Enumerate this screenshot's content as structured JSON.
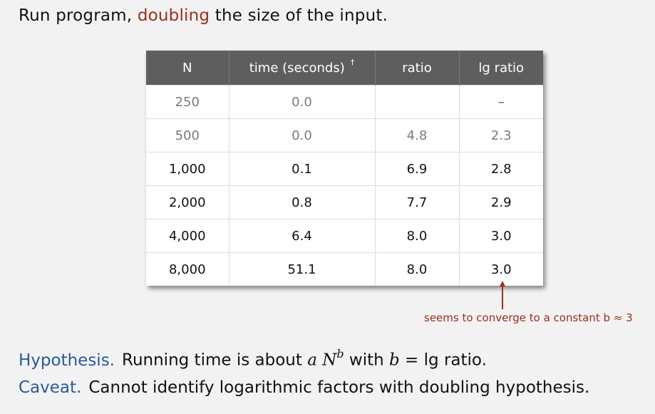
{
  "heading": {
    "before": "Run program, ",
    "emphasis": "doubling",
    "after": " the size of the input."
  },
  "table": {
    "headers": [
      "N",
      "time (seconds)",
      "ratio",
      "lg ratio"
    ],
    "dagger": "†",
    "rows": [
      [
        "250",
        "0.0",
        "",
        "–"
      ],
      [
        "500",
        "0.0",
        "4.8",
        "2.3"
      ],
      [
        "1,000",
        "0.1",
        "6.9",
        "2.8"
      ],
      [
        "2,000",
        "0.8",
        "7.7",
        "2.9"
      ],
      [
        "4,000",
        "6.4",
        "8.0",
        "3.0"
      ],
      [
        "8,000",
        "51.1",
        "8.0",
        "3.0"
      ]
    ]
  },
  "note": "seems to converge to a constant b ≈ 3",
  "hypothesis": {
    "label": "Hypothesis.",
    "text1": "Running time is about ",
    "a": "a",
    "N": "N",
    "b": "b",
    "text2": " with ",
    "b2": "b",
    "eq": " = ",
    "text3": "lg ratio."
  },
  "caveat": {
    "label": "Caveat.",
    "text": "Cannot identify logarithmic factors with doubling hypothesis."
  },
  "colors": {
    "accent": "#9b2d20",
    "label": "#2a5a9a",
    "header_bg": "#5e5e5e"
  }
}
